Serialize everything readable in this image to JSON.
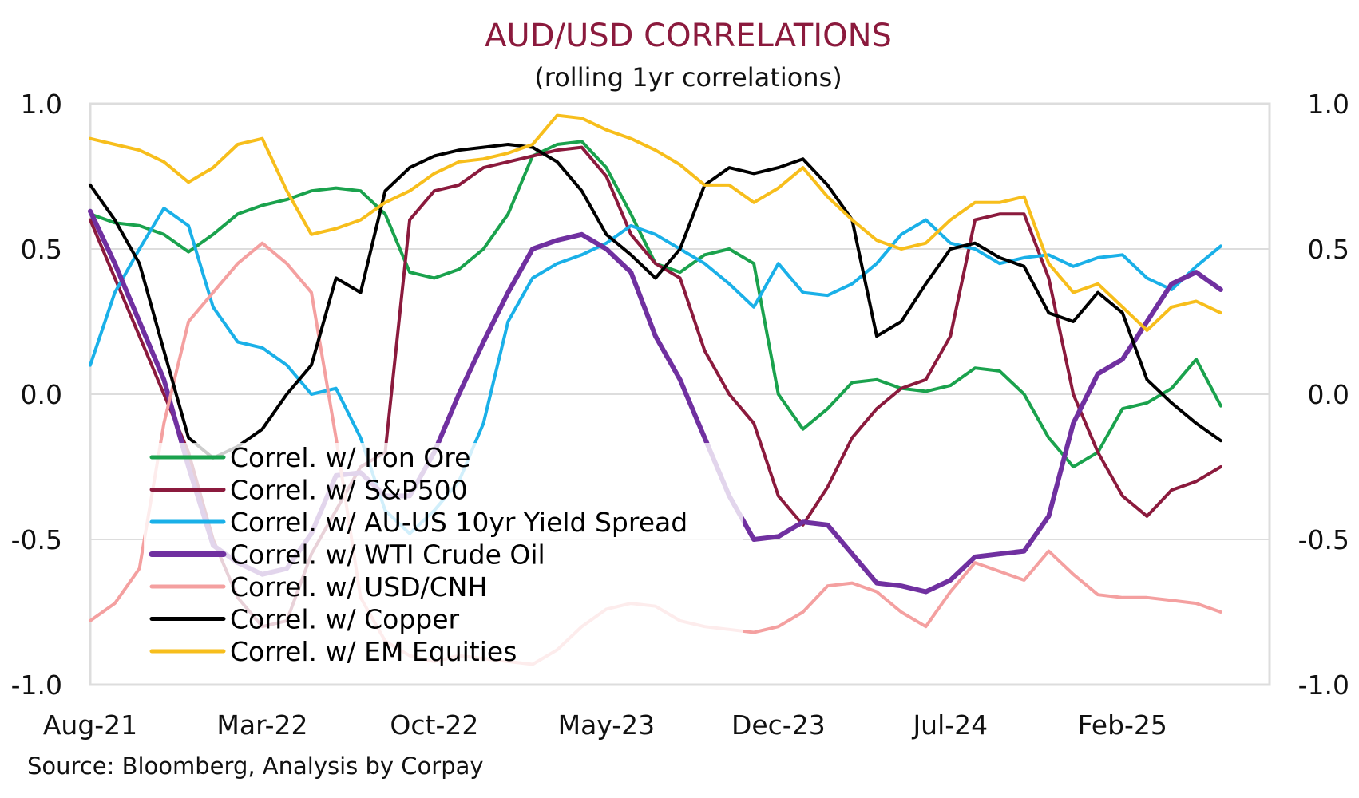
{
  "chart_data": {
    "type": "line",
    "title": "AUD/USD CORRELATIONS",
    "subtitle": "(rolling 1yr correlations)",
    "source": "Source: Bloomberg, Analysis by Corpay",
    "xlabel": "",
    "ylabel": "",
    "ylim": [
      -1.0,
      1.0
    ],
    "yticks": [
      "1.0",
      "0.5",
      "0.0",
      "-0.5",
      "-1.0"
    ],
    "ytick_values": [
      1.0,
      0.5,
      0.0,
      -0.5,
      -1.0
    ],
    "xticks": [
      "Aug-21",
      "Mar-22",
      "Oct-22",
      "May-23",
      "Dec-23",
      "Jul-24",
      "Feb-25"
    ],
    "xtick_month_index": [
      0,
      7,
      14,
      21,
      28,
      35,
      42
    ],
    "x_start": "Aug-21",
    "x_step": "monthly",
    "grid": true,
    "legend_position": "bottom-left",
    "colors": {
      "title": "#8b1a3d",
      "grid": "#dddddd"
    },
    "series": [
      {
        "name": "Correl. w/ Iron Ore",
        "color": "#1aa24d",
        "values": [
          0.62,
          0.59,
          0.58,
          0.55,
          0.49,
          0.55,
          0.62,
          0.65,
          0.67,
          0.7,
          0.71,
          0.7,
          0.62,
          0.42,
          0.4,
          0.43,
          0.5,
          0.62,
          0.82,
          0.86,
          0.87,
          0.78,
          0.62,
          0.45,
          0.42,
          0.48,
          0.5,
          0.45,
          0.0,
          -0.12,
          -0.05,
          0.04,
          0.05,
          0.02,
          0.01,
          0.03,
          0.09,
          0.08,
          0.0,
          -0.15,
          -0.25,
          -0.2,
          -0.05,
          -0.03,
          0.02,
          0.12,
          -0.04
        ]
      },
      {
        "name": "Correl. w/ S&P500",
        "color": "#8b1a3d",
        "values": [
          0.6,
          0.4,
          0.2,
          0.0,
          -0.2,
          -0.5,
          -0.7,
          -0.8,
          -0.78,
          -0.55,
          -0.4,
          -0.25,
          -0.2,
          0.6,
          0.7,
          0.72,
          0.78,
          0.8,
          0.82,
          0.84,
          0.85,
          0.75,
          0.55,
          0.45,
          0.4,
          0.15,
          0.0,
          -0.1,
          -0.35,
          -0.45,
          -0.32,
          -0.15,
          -0.05,
          0.02,
          0.05,
          0.2,
          0.6,
          0.62,
          0.62,
          0.4,
          0.0,
          -0.2,
          -0.35,
          -0.42,
          -0.33,
          -0.3,
          -0.25
        ]
      },
      {
        "name": "Correl. w/ AU-US 10yr Yield Spread",
        "color": "#1ab0e8",
        "values": [
          0.1,
          0.35,
          0.5,
          0.64,
          0.58,
          0.3,
          0.18,
          0.16,
          0.1,
          0.0,
          0.02,
          -0.15,
          -0.4,
          -0.48,
          -0.4,
          -0.3,
          -0.1,
          0.25,
          0.4,
          0.45,
          0.48,
          0.52,
          0.58,
          0.55,
          0.5,
          0.45,
          0.38,
          0.3,
          0.45,
          0.35,
          0.34,
          0.38,
          0.45,
          0.55,
          0.6,
          0.52,
          0.5,
          0.45,
          0.47,
          0.48,
          0.44,
          0.47,
          0.48,
          0.4,
          0.36,
          0.44,
          0.51
        ]
      },
      {
        "name": "Correl. w/ WTI Crude Oil",
        "color": "#7030a0",
        "values": [
          0.63,
          0.45,
          0.25,
          0.05,
          -0.25,
          -0.52,
          -0.58,
          -0.62,
          -0.6,
          -0.48,
          -0.28,
          -0.27,
          -0.35,
          -0.35,
          -0.2,
          0.0,
          0.18,
          0.35,
          0.5,
          0.53,
          0.55,
          0.5,
          0.42,
          0.2,
          0.05,
          -0.15,
          -0.35,
          -0.5,
          -0.49,
          -0.44,
          -0.45,
          -0.55,
          -0.65,
          -0.66,
          -0.68,
          -0.64,
          -0.56,
          -0.55,
          -0.54,
          -0.42,
          -0.1,
          0.07,
          0.12,
          0.25,
          0.38,
          0.42,
          0.36
        ]
      },
      {
        "name": "Correl. w/ USD/CNH",
        "color": "#f4a0a0",
        "values": [
          -0.78,
          -0.72,
          -0.6,
          -0.1,
          0.25,
          0.35,
          0.45,
          0.52,
          0.45,
          0.35,
          -0.15,
          -0.7,
          -0.85,
          -0.9,
          -0.92,
          -0.9,
          -0.91,
          -0.92,
          -0.93,
          -0.88,
          -0.8,
          -0.74,
          -0.72,
          -0.73,
          -0.78,
          -0.8,
          -0.81,
          -0.82,
          -0.8,
          -0.75,
          -0.66,
          -0.65,
          -0.68,
          -0.75,
          -0.8,
          -0.68,
          -0.58,
          -0.61,
          -0.64,
          -0.54,
          -0.62,
          -0.69,
          -0.7,
          -0.7,
          -0.71,
          -0.72,
          -0.75
        ]
      },
      {
        "name": "Correl. w/ Copper",
        "color": "#000000",
        "values": [
          0.72,
          0.6,
          0.45,
          0.15,
          -0.15,
          -0.22,
          -0.18,
          -0.12,
          0.0,
          0.1,
          0.4,
          0.35,
          0.7,
          0.78,
          0.82,
          0.84,
          0.85,
          0.86,
          0.85,
          0.8,
          0.7,
          0.55,
          0.48,
          0.4,
          0.5,
          0.72,
          0.78,
          0.76,
          0.78,
          0.81,
          0.72,
          0.6,
          0.2,
          0.25,
          0.38,
          0.5,
          0.52,
          0.47,
          0.44,
          0.28,
          0.25,
          0.35,
          0.28,
          0.05,
          -0.03,
          -0.1,
          -0.16
        ]
      },
      {
        "name": "Correl. w/ EM Equities",
        "color": "#f7be1c",
        "values": [
          0.88,
          0.86,
          0.84,
          0.8,
          0.73,
          0.78,
          0.86,
          0.88,
          0.7,
          0.55,
          0.57,
          0.6,
          0.66,
          0.7,
          0.76,
          0.8,
          0.81,
          0.83,
          0.86,
          0.96,
          0.95,
          0.91,
          0.88,
          0.84,
          0.79,
          0.72,
          0.72,
          0.66,
          0.71,
          0.78,
          0.68,
          0.6,
          0.53,
          0.5,
          0.52,
          0.6,
          0.66,
          0.66,
          0.68,
          0.45,
          0.35,
          0.38,
          0.3,
          0.22,
          0.3,
          0.32,
          0.28
        ]
      }
    ]
  }
}
